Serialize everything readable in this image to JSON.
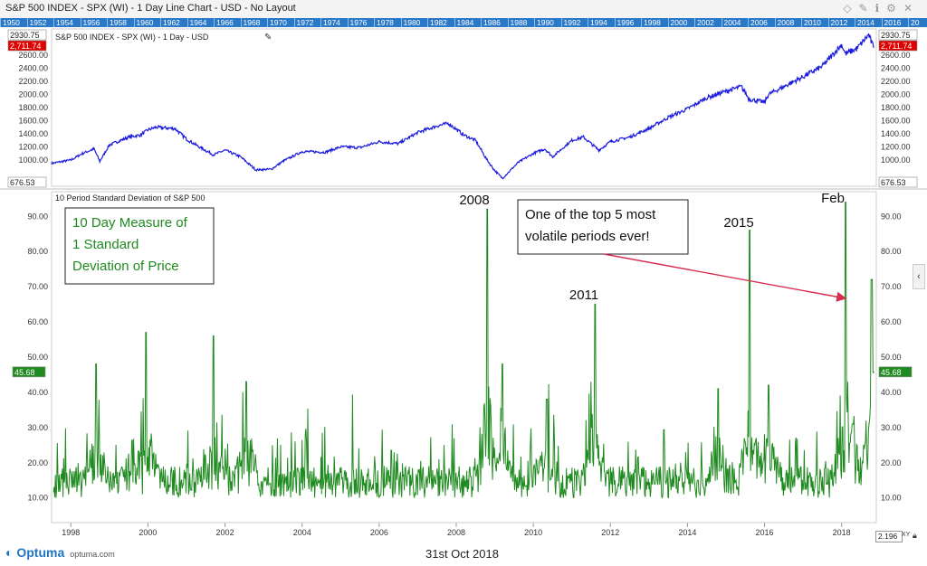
{
  "window": {
    "title": "S&P 500 INDEX - SPX (WI) - 1 Day Line Chart - USD - No Layout",
    "year_strip": [
      "1950",
      "1952",
      "1954",
      "1956",
      "1958",
      "1960",
      "1962",
      "1964",
      "1966",
      "1968",
      "1970",
      "1972",
      "1974",
      "1976",
      "1978",
      "1980",
      "1982",
      "1984",
      "1986",
      "1988",
      "1990",
      "1992",
      "1994",
      "1996",
      "1998",
      "2000",
      "2002",
      "2004",
      "2006",
      "2008",
      "2010",
      "2012",
      "2014",
      "2016",
      "20"
    ]
  },
  "icons": {
    "pencil": "pencil-icon",
    "pin": "pin-icon",
    "info": "info-icon",
    "settings": "gear-icon",
    "close": "close-icon",
    "lock": "lock-icon",
    "collapse": "chevron-left-icon"
  },
  "colors": {
    "price_line": "#1a1adf",
    "volatility_line": "#1f8a1f",
    "annotation_text": "#1f8a1f",
    "arrow": "#d7304f",
    "last_price_badge": "#e00000",
    "last_value_badge": "#1f8a1f"
  },
  "chart_data": [
    {
      "type": "line",
      "title": "S&P 500 INDEX - SPX (WI) - 1 Day - USD",
      "ylim": [
        600,
        3000
      ],
      "yticks": [
        1000,
        1200,
        1400,
        1600,
        1800,
        2000,
        2200,
        2400,
        2600
      ],
      "ytick_labels": [
        "1000.00",
        "1200.00",
        "1400.00",
        "1600.00",
        "1800.00",
        "2000.00",
        "2200.00",
        "2400.00",
        "2600.00"
      ],
      "xlim": [
        1997.5,
        2018.9
      ],
      "badges": {
        "high": "2930.75",
        "last": "2,711.74",
        "low": "676.53"
      },
      "series": [
        {
          "x": [
            1997.5,
            1998.0,
            1998.3,
            1998.6,
            1998.75,
            1999.0,
            1999.5,
            1999.8,
            2000.0,
            2000.2,
            2000.7,
            2001.0,
            2001.3,
            2001.7,
            2002.0,
            2002.4,
            2002.8,
            2003.2,
            2003.5,
            2004.0,
            2004.6,
            2005.0,
            2005.5,
            2006.0,
            2006.5,
            2007.0,
            2007.5,
            2007.8,
            2008.2,
            2008.5,
            2008.8,
            2009.0,
            2009.2,
            2009.6,
            2010.0,
            2010.3,
            2010.5,
            2011.0,
            2011.3,
            2011.7,
            2012.0,
            2012.5,
            2013.0,
            2013.5,
            2014.0,
            2014.5,
            2015.0,
            2015.4,
            2015.6,
            2016.0,
            2016.1,
            2016.6,
            2017.0,
            2017.5,
            2018.0,
            2018.1,
            2018.4,
            2018.7,
            2018.83
          ],
          "y": [
            950,
            1000,
            1100,
            1170,
            980,
            1230,
            1350,
            1380,
            1460,
            1500,
            1480,
            1320,
            1210,
            1080,
            1150,
            1050,
            850,
            860,
            980,
            1130,
            1120,
            1200,
            1190,
            1280,
            1250,
            1420,
            1520,
            1560,
            1380,
            1300,
            1000,
            840,
            720,
            960,
            1100,
            1170,
            1050,
            1300,
            1350,
            1150,
            1280,
            1350,
            1480,
            1650,
            1780,
            1950,
            2050,
            2120,
            1930,
            1880,
            2000,
            2150,
            2270,
            2430,
            2760,
            2620,
            2700,
            2910,
            2711.74
          ]
        }
      ]
    },
    {
      "type": "line",
      "title": "10 Period Standard Deviation of S&P 500",
      "ylim": [
        3,
        97
      ],
      "yticks": [
        10,
        20,
        30,
        40,
        50,
        60,
        70,
        80,
        90
      ],
      "ytick_labels": [
        "10.00",
        "20.00",
        "30.00",
        "40.00",
        "50.00",
        "60.00",
        "70.00",
        "80.00",
        "90.00"
      ],
      "xlim": [
        1997.5,
        2018.9
      ],
      "xticks": [
        1998,
        2000,
        2002,
        2004,
        2006,
        2008,
        2010,
        2012,
        2014,
        2016,
        2018
      ],
      "xtick_labels": [
        "1998",
        "2000",
        "2002",
        "2004",
        "2006",
        "2008",
        "2010",
        "2012",
        "2014",
        "2016",
        "2018"
      ],
      "last_value": "45.68",
      "peaks": [
        {
          "x": 1998.65,
          "y": 48
        },
        {
          "x": 1999.95,
          "y": 57
        },
        {
          "x": 2001.7,
          "y": 56
        },
        {
          "x": 2002.55,
          "y": 43
        },
        {
          "x": 2008.8,
          "y": 92
        },
        {
          "x": 2009.2,
          "y": 48
        },
        {
          "x": 2010.35,
          "y": 38
        },
        {
          "x": 2011.6,
          "y": 65
        },
        {
          "x": 2014.8,
          "y": 41
        },
        {
          "x": 2015.62,
          "y": 86
        },
        {
          "x": 2016.1,
          "y": 42
        },
        {
          "x": 2018.1,
          "y": 94
        },
        {
          "x": 2018.3,
          "y": 31
        },
        {
          "x": 2018.78,
          "y": 72
        },
        {
          "x": 2018.83,
          "y": 45.68
        }
      ],
      "annotations": [
        {
          "text": "2008"
        },
        {
          "text": "2011"
        },
        {
          "text": "2015"
        },
        {
          "text": "Feb"
        }
      ],
      "legend_box": [
        "10 Day Measure of",
        "1 Standard",
        "Deviation of Price"
      ],
      "callout": [
        "One of the top 5 most",
        "volatile periods ever!"
      ]
    }
  ],
  "footer": {
    "brand": "Optuma",
    "site": "optuma.com",
    "date": "31st Oct 2018",
    "zoom_value": "2.196",
    "xy_label": "XY"
  }
}
